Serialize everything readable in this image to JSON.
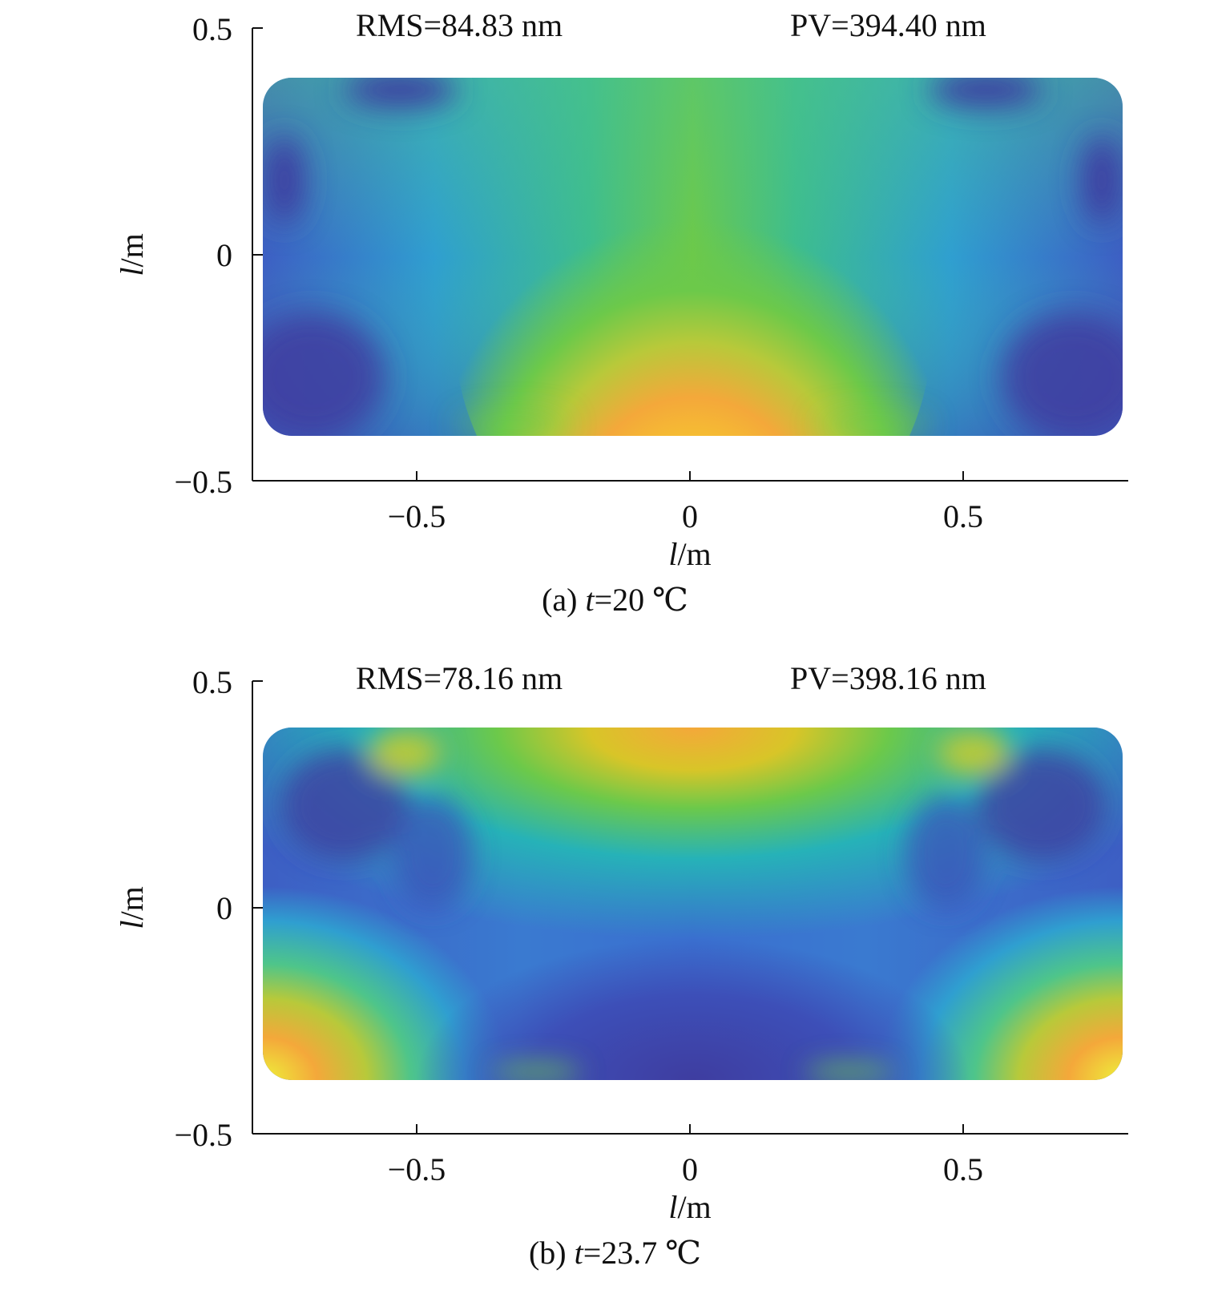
{
  "chart_data": [
    {
      "type": "heatmap",
      "xlabel_italic": "l",
      "xlabel_unit": "/m",
      "ylabel_italic": "l",
      "ylabel_unit": "/m",
      "xlim": [
        -0.8,
        0.8
      ],
      "ylim": [
        -0.5,
        0.5
      ],
      "xticks": [
        -0.5,
        0,
        0.5
      ],
      "xtick_labels": [
        "−0.5",
        "0",
        "0.5"
      ],
      "yticks": [
        -0.5,
        0,
        0.5
      ],
      "ytick_labels": [
        "−0.5",
        "0",
        "0.5"
      ],
      "annotations": [
        "RMS=84.83 nm",
        "PV=394.40 nm"
      ],
      "caption_prefix": "(a) ",
      "caption_var": "t",
      "caption_rest": "=20 ℃",
      "colormap": [
        "#3e3da0",
        "#2f7fd5",
        "#26b2b8",
        "#6cc94a",
        "#d8c528",
        "#f8a832",
        "#eef13a"
      ]
    },
    {
      "type": "heatmap",
      "xlabel_italic": "l",
      "xlabel_unit": "/m",
      "ylabel_italic": "l",
      "ylabel_unit": "/m",
      "xlim": [
        -0.8,
        0.8
      ],
      "ylim": [
        -0.5,
        0.5
      ],
      "xticks": [
        -0.5,
        0,
        0.5
      ],
      "xtick_labels": [
        "−0.5",
        "0",
        "0.5"
      ],
      "yticks": [
        -0.5,
        0,
        0.5
      ],
      "ytick_labels": [
        "−0.5",
        "0",
        "0.5"
      ],
      "annotations": [
        "RMS=78.16 nm",
        "PV=398.16 nm"
      ],
      "caption_prefix": "(b) ",
      "caption_var": "t",
      "caption_rest": "=23.7 ℃",
      "colormap": [
        "#3e3da0",
        "#2f7fd5",
        "#26b2b8",
        "#6cc94a",
        "#d8c528",
        "#f8a832",
        "#eef13a"
      ]
    }
  ]
}
